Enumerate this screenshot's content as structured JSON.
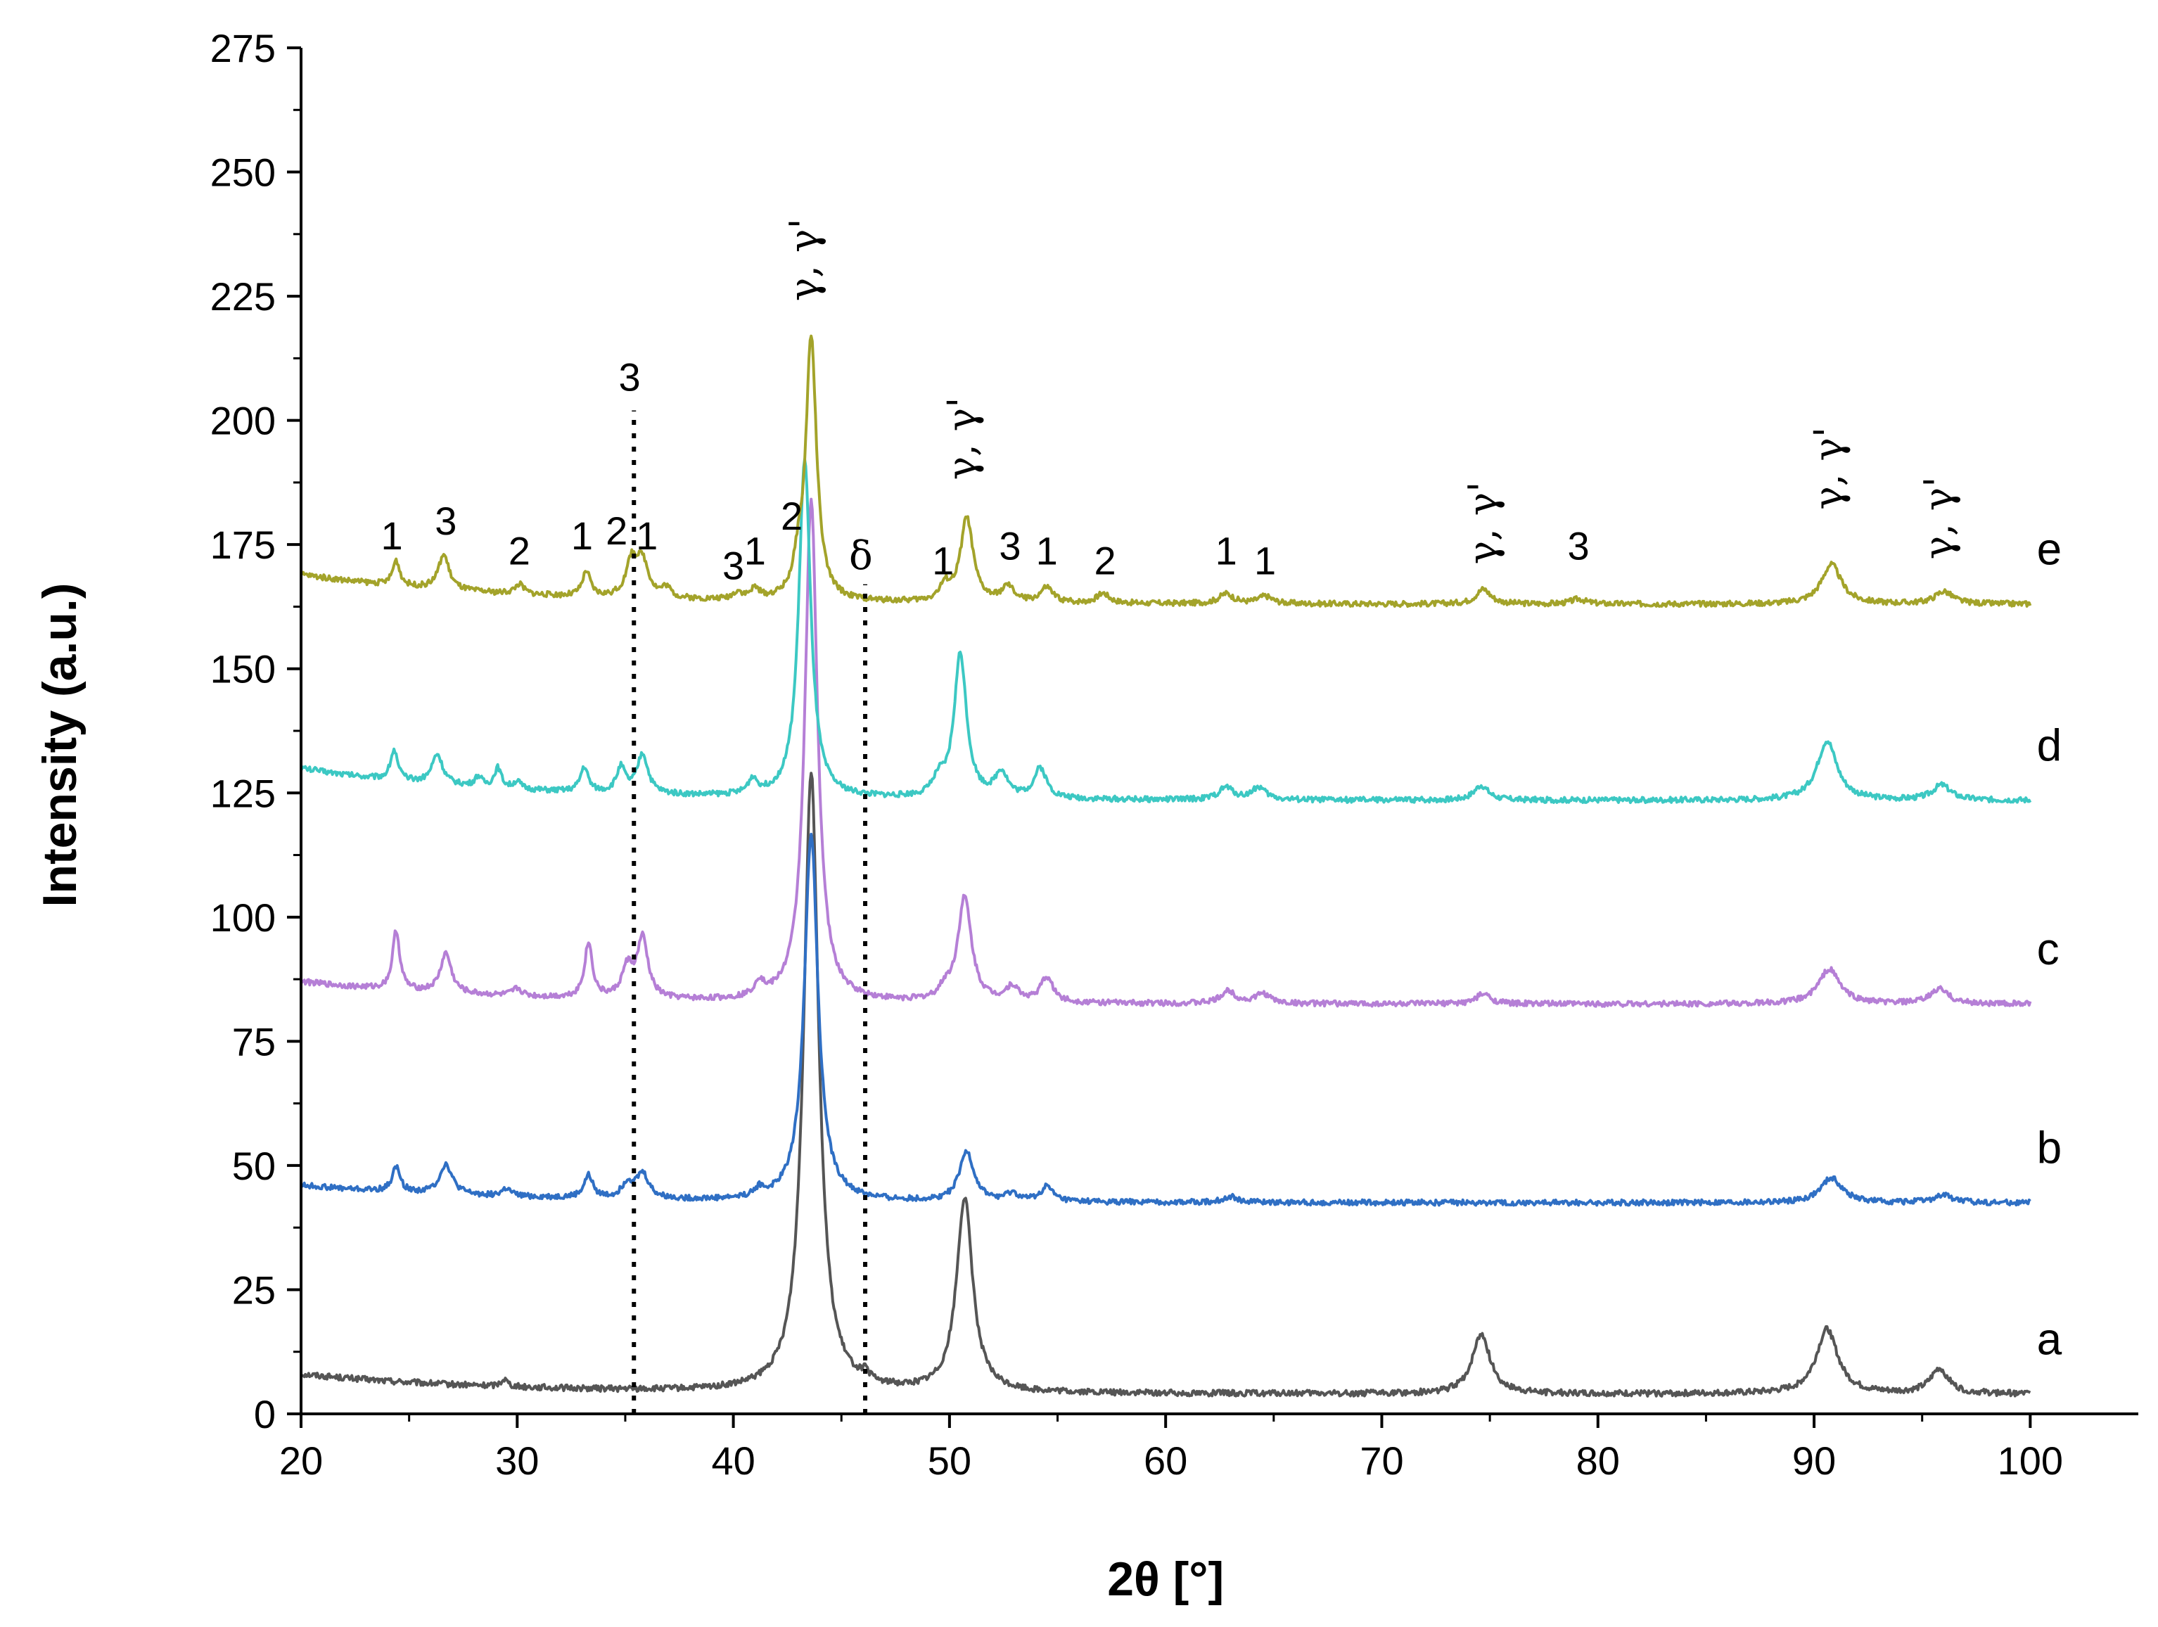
{
  "chart_data": {
    "type": "line",
    "title": "",
    "xlabel": "2θ [°]",
    "ylabel": "Intensity (a.u.)",
    "xlim": [
      20,
      105
    ],
    "ylim": [
      0,
      275
    ],
    "x_ticks": [
      "20",
      "30",
      "40",
      "50",
      "60",
      "70",
      "80",
      "90",
      "100"
    ],
    "y_ticks": [
      "0",
      "25",
      "50",
      "75",
      "100",
      "125",
      "150",
      "175",
      "200",
      "225",
      "250",
      "275"
    ],
    "grid": false,
    "legend": "none (series labelled a–e at right end of each trace)",
    "series": [
      {
        "name": "a",
        "color": "#555555",
        "baseline": 4,
        "slope_start": 8,
        "noise": 0.6,
        "peaks": [
          [
            29.4,
            1.5,
            0.2
          ],
          [
            43.6,
            125,
            0.42
          ],
          [
            46.1,
            1.5,
            0.2
          ],
          [
            50.7,
            39,
            0.45
          ],
          [
            74.6,
            12,
            0.5
          ],
          [
            90.6,
            13,
            0.6
          ],
          [
            95.8,
            5,
            0.5
          ]
        ]
      },
      {
        "name": "b",
        "color": "#2f6fc4",
        "baseline": 42.5,
        "slope_start": 46,
        "noise": 0.55,
        "peaks": [
          [
            24.4,
            5,
            0.22
          ],
          [
            26.7,
            6,
            0.35
          ],
          [
            29.5,
            1.5,
            0.25
          ],
          [
            33.3,
            4.5,
            0.25
          ],
          [
            35.1,
            3,
            0.3
          ],
          [
            35.8,
            5,
            0.35
          ],
          [
            41.2,
            1.5,
            0.25
          ],
          [
            43.6,
            74,
            0.38
          ],
          [
            50.8,
            10,
            0.4
          ],
          [
            52.9,
            1.5,
            0.35
          ],
          [
            54.5,
            3,
            0.35
          ],
          [
            63,
            1.2,
            0.4
          ],
          [
            90.8,
            5,
            0.6
          ],
          [
            96,
            1.5,
            0.5
          ]
        ]
      },
      {
        "name": "c",
        "color": "#b57fd6",
        "baseline": 82.5,
        "slope_start": 87,
        "noise": 0.55,
        "peaks": [
          [
            24.4,
            12,
            0.2
          ],
          [
            26.7,
            8,
            0.3
          ],
          [
            30,
            1.5,
            0.25
          ],
          [
            33.3,
            11,
            0.22
          ],
          [
            35.1,
            6,
            0.3
          ],
          [
            35.8,
            12,
            0.3
          ],
          [
            41.2,
            3,
            0.25
          ],
          [
            43.6,
            101,
            0.35
          ],
          [
            49.8,
            2,
            0.3
          ],
          [
            50.7,
            21,
            0.38
          ],
          [
            52.9,
            3,
            0.35
          ],
          [
            54.5,
            5,
            0.35
          ],
          [
            62.9,
            2.5,
            0.4
          ],
          [
            64.5,
            2,
            0.4
          ],
          [
            74.7,
            2,
            0.4
          ],
          [
            90.7,
            7,
            0.6
          ],
          [
            95.8,
            3,
            0.5
          ]
        ]
      },
      {
        "name": "d",
        "color": "#3cc8c3",
        "baseline": 123.5,
        "slope_start": 130,
        "noise": 0.55,
        "peaks": [
          [
            24.3,
            6,
            0.2
          ],
          [
            26.3,
            6,
            0.3
          ],
          [
            28.2,
            2,
            0.2
          ],
          [
            29.1,
            4,
            0.2
          ],
          [
            30,
            1.5,
            0.2
          ],
          [
            33.1,
            5,
            0.22
          ],
          [
            34.8,
            5,
            0.25
          ],
          [
            35.8,
            8,
            0.3
          ],
          [
            40.9,
            3,
            0.25
          ],
          [
            43.3,
            68,
            0.33
          ],
          [
            49.5,
            3,
            0.3
          ],
          [
            50.5,
            29,
            0.35
          ],
          [
            52.4,
            5,
            0.35
          ],
          [
            54.2,
            6,
            0.35
          ],
          [
            62.8,
            2.5,
            0.4
          ],
          [
            64.3,
            2.5,
            0.4
          ],
          [
            74.6,
            3,
            0.4
          ],
          [
            90.6,
            12,
            0.55
          ],
          [
            95.9,
            3,
            0.5
          ]
        ]
      },
      {
        "name": "e",
        "color": "#a3a32a",
        "baseline": 163,
        "slope_start": 169,
        "noise": 0.55,
        "peaks": [
          [
            24.4,
            5,
            0.2
          ],
          [
            26.6,
            7,
            0.3
          ],
          [
            30.1,
            2,
            0.25
          ],
          [
            33.2,
            5,
            0.22
          ],
          [
            35.3,
            7,
            0.3
          ],
          [
            35.8,
            7,
            0.35
          ],
          [
            36.9,
            2,
            0.25
          ],
          [
            40.2,
            1.5,
            0.25
          ],
          [
            41,
            2,
            0.25
          ],
          [
            43,
            5,
            0.25
          ],
          [
            43.6,
            53,
            0.3
          ],
          [
            49.8,
            3,
            0.3
          ],
          [
            50.8,
            17,
            0.35
          ],
          [
            52.7,
            3,
            0.35
          ],
          [
            54.5,
            3,
            0.35
          ],
          [
            57.1,
            2,
            0.35
          ],
          [
            62.8,
            2,
            0.4
          ],
          [
            64.6,
            1.5,
            0.4
          ],
          [
            74.7,
            3,
            0.4
          ],
          [
            79.1,
            1,
            0.4
          ],
          [
            90.8,
            8,
            0.55
          ],
          [
            96,
            2.5,
            0.5
          ]
        ]
      }
    ],
    "guide_lines": [
      {
        "x": 35.4,
        "y_top": 202
      },
      {
        "x": 46.1,
        "y_top": 167
      }
    ],
    "annotations": [
      {
        "text": "1",
        "x": 24.2,
        "y": 174,
        "rotate": false
      },
      {
        "text": "3",
        "x": 26.7,
        "y": 177,
        "rotate": false
      },
      {
        "text": "2",
        "x": 30.1,
        "y": 171,
        "rotate": false
      },
      {
        "text": "1",
        "x": 33.0,
        "y": 174,
        "rotate": false
      },
      {
        "text": "2",
        "x": 34.6,
        "y": 175,
        "rotate": false
      },
      {
        "text": "1",
        "x": 36.0,
        "y": 174,
        "rotate": false
      },
      {
        "text": "3",
        "x": 35.2,
        "y": 206,
        "rotate": false
      },
      {
        "text": "3",
        "x": 40.0,
        "y": 168,
        "rotate": false
      },
      {
        "text": "1",
        "x": 41.0,
        "y": 171,
        "rotate": false
      },
      {
        "text": "2",
        "x": 42.7,
        "y": 178,
        "rotate": false
      },
      {
        "text": "δ",
        "x": 45.9,
        "y": 170,
        "rotate": false
      },
      {
        "text": "1",
        "x": 49.7,
        "y": 169,
        "rotate": false
      },
      {
        "text": "3",
        "x": 52.8,
        "y": 172,
        "rotate": false
      },
      {
        "text": "1",
        "x": 54.5,
        "y": 171,
        "rotate": false
      },
      {
        "text": "2",
        "x": 57.2,
        "y": 169,
        "rotate": false
      },
      {
        "text": "1",
        "x": 62.8,
        "y": 171,
        "rotate": false
      },
      {
        "text": "1",
        "x": 64.6,
        "y": 169,
        "rotate": false
      },
      {
        "text": "3",
        "x": 79.1,
        "y": 172,
        "rotate": false
      },
      {
        "text": "γ, γ'",
        "x": 43.9,
        "y": 224,
        "rotate": true
      },
      {
        "text": "γ, γ'",
        "x": 51.2,
        "y": 188,
        "rotate": true
      },
      {
        "text": "γ, γ'",
        "x": 75.3,
        "y": 171,
        "rotate": true
      },
      {
        "text": "γ, γ'",
        "x": 91.3,
        "y": 182,
        "rotate": true
      },
      {
        "text": "γ, γ'",
        "x": 96.4,
        "y": 172,
        "rotate": true
      }
    ]
  }
}
